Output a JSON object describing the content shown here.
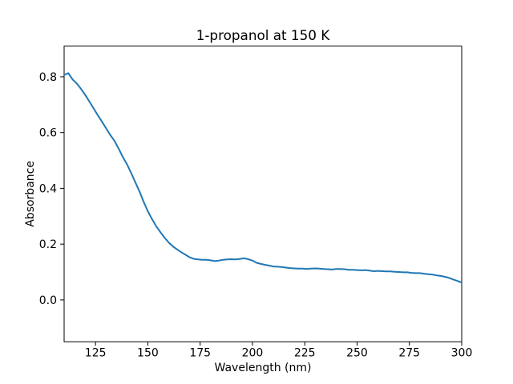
{
  "figure": {
    "background": "#ffffff"
  },
  "chart_data": {
    "type": "line",
    "title": "1-propanol at 150 K",
    "xlabel": "Wavelength (nm)",
    "ylabel": "Absorbance",
    "xlim": [
      110,
      300
    ],
    "ylim": [
      -0.15,
      0.91
    ],
    "xtick_values": [
      125,
      150,
      175,
      200,
      225,
      250,
      275,
      300
    ],
    "xtick_labels": [
      "125",
      "150",
      "175",
      "200",
      "225",
      "250",
      "275",
      "300"
    ],
    "ytick_values": [
      0.0,
      0.2,
      0.4,
      0.6,
      0.8
    ],
    "ytick_labels": [
      "0.0",
      "0.2",
      "0.4",
      "0.6",
      "0.8"
    ],
    "grid": false,
    "legend": null,
    "line_color": "#1f77b4",
    "line_width": 2,
    "spine_color": "#000000",
    "series": [
      {
        "name": "absorbance-spectrum",
        "x": [
          110,
          112,
          114,
          116,
          118,
          120,
          122,
          124,
          126,
          128,
          130,
          132,
          134,
          136,
          138,
          140,
          142,
          144,
          146,
          148,
          150,
          152,
          154,
          156,
          158,
          160,
          162,
          164,
          166,
          168,
          170,
          172,
          174,
          176,
          178,
          180,
          182,
          184,
          186,
          188,
          190,
          192,
          194,
          196,
          198,
          200,
          202,
          204,
          206,
          208,
          210,
          212,
          214,
          216,
          218,
          220,
          222,
          224,
          226,
          228,
          230,
          232,
          234,
          236,
          238,
          240,
          242,
          244,
          246,
          248,
          250,
          252,
          254,
          256,
          258,
          260,
          262,
          264,
          266,
          268,
          270,
          272,
          274,
          276,
          278,
          280,
          282,
          284,
          286,
          288,
          290,
          292,
          294,
          296,
          298,
          300
        ],
        "y": [
          0.806,
          0.813,
          0.791,
          0.776,
          0.757,
          0.736,
          0.712,
          0.688,
          0.663,
          0.64,
          0.616,
          0.592,
          0.571,
          0.543,
          0.513,
          0.487,
          0.456,
          0.422,
          0.389,
          0.352,
          0.318,
          0.29,
          0.264,
          0.243,
          0.223,
          0.206,
          0.192,
          0.181,
          0.171,
          0.162,
          0.153,
          0.147,
          0.145,
          0.144,
          0.144,
          0.142,
          0.139,
          0.141,
          0.144,
          0.145,
          0.146,
          0.145,
          0.147,
          0.149,
          0.146,
          0.141,
          0.133,
          0.129,
          0.126,
          0.123,
          0.12,
          0.119,
          0.118,
          0.116,
          0.114,
          0.113,
          0.112,
          0.112,
          0.111,
          0.112,
          0.113,
          0.112,
          0.111,
          0.11,
          0.109,
          0.111,
          0.111,
          0.11,
          0.108,
          0.108,
          0.107,
          0.106,
          0.107,
          0.105,
          0.103,
          0.104,
          0.103,
          0.102,
          0.102,
          0.101,
          0.1,
          0.099,
          0.099,
          0.097,
          0.096,
          0.096,
          0.094,
          0.092,
          0.091,
          0.088,
          0.086,
          0.083,
          0.079,
          0.073,
          0.068,
          0.062
        ]
      }
    ]
  }
}
